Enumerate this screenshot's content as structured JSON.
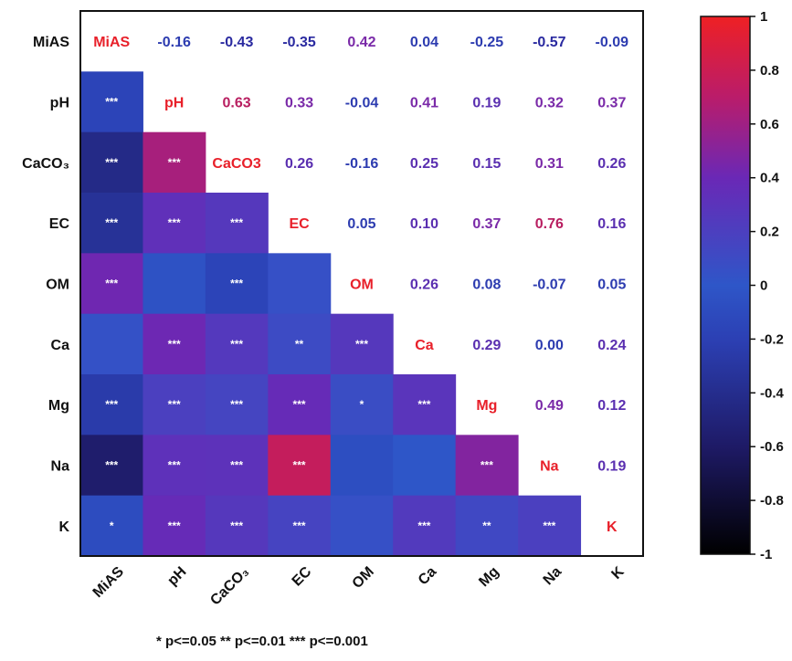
{
  "chart_data": {
    "type": "heatmap",
    "variables": [
      "MiAS",
      "pH",
      "CaCO₃",
      "EC",
      "OM",
      "Ca",
      "Mg",
      "Na",
      "K"
    ],
    "diagonal_labels": [
      "MiAS",
      "pH",
      "CaCO3",
      "EC",
      "OM",
      "Ca",
      "Mg",
      "Na",
      "K"
    ],
    "correlations": [
      [
        null,
        -0.16,
        -0.43,
        -0.35,
        0.42,
        0.04,
        -0.25,
        -0.57,
        -0.09
      ],
      [
        -0.16,
        null,
        0.63,
        0.33,
        -0.04,
        0.41,
        0.19,
        0.32,
        0.37
      ],
      [
        -0.43,
        0.63,
        null,
        0.26,
        -0.16,
        0.25,
        0.15,
        0.31,
        0.26
      ],
      [
        -0.35,
        0.33,
        0.26,
        null,
        0.05,
        0.1,
        0.37,
        0.76,
        0.16
      ],
      [
        0.42,
        -0.04,
        -0.16,
        0.05,
        null,
        0.26,
        0.08,
        -0.07,
        0.05
      ],
      [
        0.04,
        0.41,
        0.25,
        0.1,
        0.26,
        null,
        0.29,
        0.0,
        0.24
      ],
      [
        -0.25,
        0.19,
        0.15,
        0.37,
        0.08,
        0.29,
        null,
        0.49,
        0.12
      ],
      [
        -0.57,
        0.32,
        0.31,
        0.76,
        -0.07,
        0.0,
        0.49,
        null,
        0.19
      ],
      [
        -0.09,
        0.37,
        0.26,
        0.16,
        0.05,
        0.24,
        0.12,
        0.19,
        null
      ]
    ],
    "upper_labels": [
      [
        "",
        "-0.16",
        "-0.43",
        "-0.35",
        "0.42",
        "0.04",
        "-0.25",
        "-0.57",
        "-0.09"
      ],
      [
        "",
        "",
        "0.63",
        "0.33",
        "-0.04",
        "0.41",
        "0.19",
        "0.32",
        "0.37"
      ],
      [
        "",
        "",
        "",
        "0.26",
        "-0.16",
        "0.25",
        "0.15",
        "0.31",
        "0.26"
      ],
      [
        "",
        "",
        "",
        "",
        "0.05",
        "0.10",
        "0.37",
        "0.76",
        "0.16"
      ],
      [
        "",
        "",
        "",
        "",
        "",
        "0.26",
        "0.08",
        "-0.07",
        "0.05"
      ],
      [
        "",
        "",
        "",
        "",
        "",
        "",
        "0.29",
        "0.00",
        "0.24"
      ],
      [
        "",
        "",
        "",
        "",
        "",
        "",
        "",
        "0.49",
        "0.12"
      ],
      [
        "",
        "",
        "",
        "",
        "",
        "",
        "",
        "",
        "0.19"
      ],
      [
        "",
        "",
        "",
        "",
        "",
        "",
        "",
        "",
        ""
      ]
    ],
    "significance": [
      [
        "",
        "",
        "",
        "",
        "",
        "",
        "",
        "",
        ""
      ],
      [
        "***",
        "",
        "",
        "",
        "",
        "",
        "",
        "",
        ""
      ],
      [
        "***",
        "***",
        "",
        "",
        "",
        "",
        "",
        "",
        ""
      ],
      [
        "***",
        "***",
        "***",
        "",
        "",
        "",
        "",
        "",
        ""
      ],
      [
        "***",
        "",
        "***",
        "",
        "",
        "",
        "",
        "",
        ""
      ],
      [
        "",
        "***",
        "***",
        "**",
        "***",
        "",
        "",
        "",
        ""
      ],
      [
        "***",
        "***",
        "***",
        "***",
        "*",
        "***",
        "",
        "",
        ""
      ],
      [
        "***",
        "***",
        "***",
        "***",
        "",
        "",
        "***",
        "",
        ""
      ],
      [
        "*",
        "***",
        "***",
        "***",
        "",
        "***",
        "**",
        "***",
        ""
      ]
    ],
    "colorbar": {
      "min": -1,
      "max": 1,
      "ticks": [
        "1",
        "0.8",
        "0.6",
        "0.4",
        "0.2",
        "0",
        "-0.2",
        "-0.4",
        "-0.6",
        "-0.8",
        "-1"
      ],
      "colors": {
        "-1": "#000000",
        "-0.6": "#1e1a66",
        "-0.2": "#2c40b4",
        "0": "#2e56c8",
        "0.4": "#6a28b6",
        "0.7": "#ba1c6a",
        "1": "#ee2024"
      }
    },
    "footnote": "* p<=0.05  ** p<=0.01  *** p<=0.001"
  }
}
